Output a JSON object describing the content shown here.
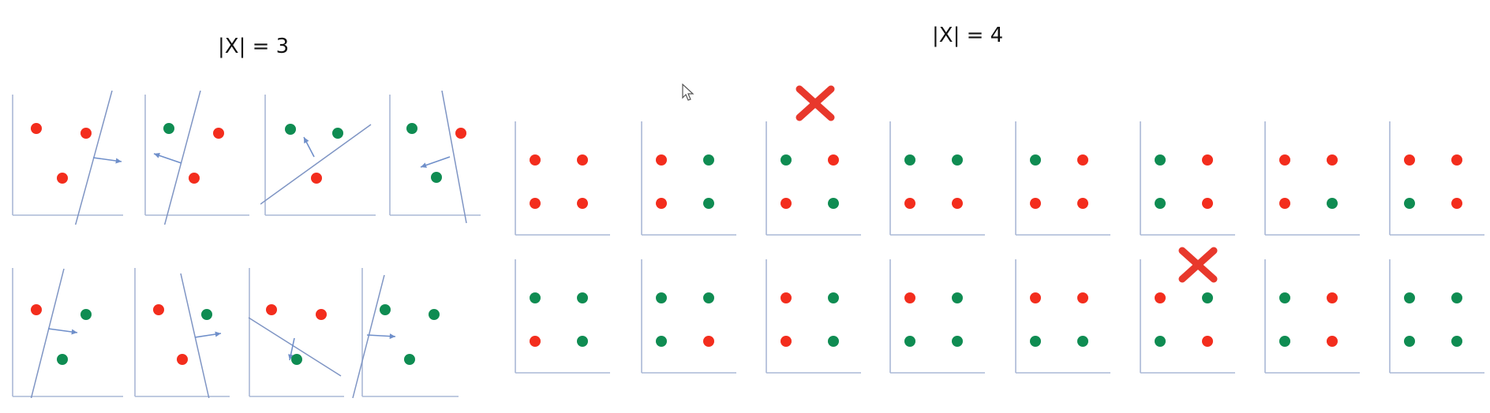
{
  "titles": {
    "left": "|X| = 3",
    "right": "|X| = 4"
  },
  "colors": {
    "red": "#f32d1d",
    "green": "#0f8c52",
    "axis": "#aab8d6",
    "line": "#7f95c4",
    "arrow": "#6f8fca",
    "cross": "#e8382c"
  },
  "left_set": {
    "size": 3,
    "configurations": [
      {
        "colors": [
          "red",
          "red",
          "red"
        ],
        "separable": true
      },
      {
        "colors": [
          "green",
          "red",
          "red"
        ],
        "separable": true
      },
      {
        "colors": [
          "green",
          "green",
          "red"
        ],
        "separable": true
      },
      {
        "colors": [
          "green",
          "red",
          "green"
        ],
        "separable": true
      },
      {
        "colors": [
          "red",
          "green",
          "green"
        ],
        "separable": true
      },
      {
        "colors": [
          "red",
          "green",
          "red"
        ],
        "separable": true
      },
      {
        "colors": [
          "red",
          "red",
          "green"
        ],
        "separable": true
      },
      {
        "colors": [
          "green",
          "green",
          "green"
        ],
        "separable": true
      }
    ]
  },
  "right_set": {
    "size": 4,
    "configurations": [
      {
        "colors": [
          "red",
          "red",
          "red",
          "red"
        ],
        "separable": true
      },
      {
        "colors": [
          "red",
          "green",
          "red",
          "green"
        ],
        "separable": true
      },
      {
        "colors": [
          "green",
          "red",
          "red",
          "green"
        ],
        "separable": false
      },
      {
        "colors": [
          "green",
          "green",
          "red",
          "red"
        ],
        "separable": true
      },
      {
        "colors": [
          "green",
          "red",
          "red",
          "red"
        ],
        "separable": true
      },
      {
        "colors": [
          "green",
          "red",
          "green",
          "red"
        ],
        "separable": true
      },
      {
        "colors": [
          "red",
          "red",
          "red",
          "green"
        ],
        "separable": true
      },
      {
        "colors": [
          "red",
          "red",
          "green",
          "red"
        ],
        "separable": true
      },
      {
        "colors": [
          "green",
          "green",
          "red",
          "green"
        ],
        "separable": true
      },
      {
        "colors": [
          "green",
          "green",
          "green",
          "red"
        ],
        "separable": true
      },
      {
        "colors": [
          "red",
          "green",
          "red",
          "green"
        ],
        "separable": true
      },
      {
        "colors": [
          "red",
          "green",
          "green",
          "green"
        ],
        "separable": true
      },
      {
        "colors": [
          "red",
          "red",
          "green",
          "green"
        ],
        "separable": true
      },
      {
        "colors": [
          "red",
          "green",
          "green",
          "red"
        ],
        "separable": false
      },
      {
        "colors": [
          "green",
          "red",
          "green",
          "red"
        ],
        "separable": true
      },
      {
        "colors": [
          "green",
          "green",
          "green",
          "green"
        ],
        "separable": true
      }
    ]
  }
}
